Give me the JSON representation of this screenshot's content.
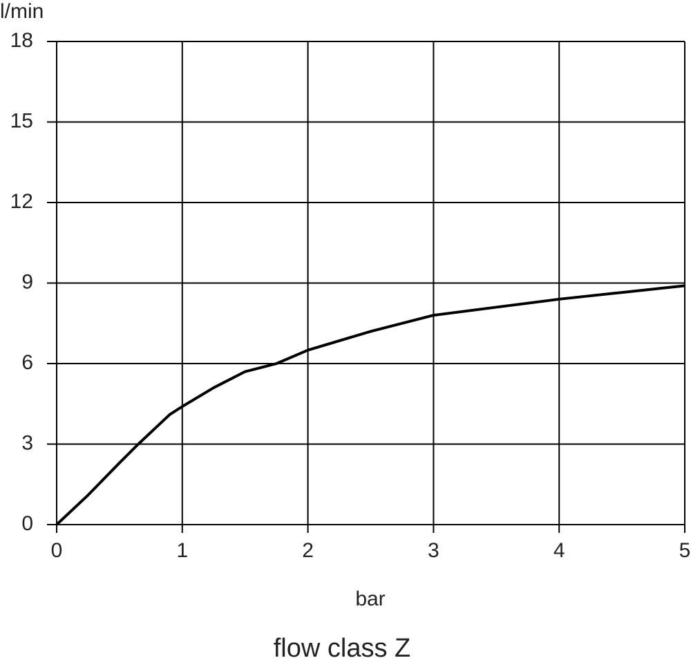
{
  "chart_data": {
    "type": "line",
    "title": "flow class Z",
    "x_label": "bar",
    "y_label": "l/min",
    "x": [
      0,
      0.25,
      0.5,
      0.65,
      0.9,
      1,
      1.25,
      1.5,
      1.75,
      2,
      2.5,
      3,
      3.5,
      4,
      4.5,
      5
    ],
    "series": [
      {
        "name": "flow class Z",
        "color": "#000000",
        "values": [
          0,
          1.1,
          2.3,
          3.0,
          4.1,
          4.4,
          5.1,
          5.7,
          6.0,
          6.5,
          7.2,
          7.8,
          8.1,
          8.4,
          8.65,
          8.9
        ]
      }
    ],
    "xlim": [
      0,
      5
    ],
    "xticks": [
      0,
      1,
      2,
      3,
      4,
      5
    ],
    "ylim": [
      0,
      18
    ],
    "yticks": [
      0,
      3,
      6,
      9,
      12,
      15,
      18
    ],
    "grid": true
  }
}
